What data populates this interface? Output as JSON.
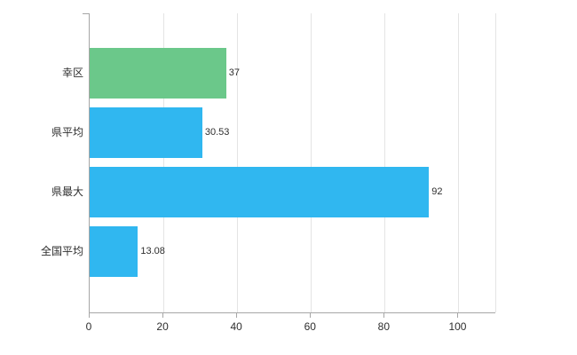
{
  "chart_data": {
    "type": "bar",
    "orientation": "horizontal",
    "title": "",
    "xlabel": "",
    "ylabel": "",
    "categories": [
      "幸区",
      "県平均",
      "県最大",
      "全国平均"
    ],
    "values": [
      37,
      30.53,
      92,
      13.08
    ],
    "value_labels": [
      "37",
      "30.53",
      "92",
      "13.08"
    ],
    "bar_colors": [
      "#6bc88a",
      "#30b7f0",
      "#30b7f0",
      "#30b7f0"
    ],
    "xlim": [
      0,
      110
    ],
    "xticks": [
      0,
      20,
      40,
      60,
      80,
      100
    ],
    "xtick_labels": [
      "0",
      "20",
      "40",
      "60",
      "80",
      "100"
    ],
    "grid": "vertical",
    "legend": "none",
    "colors": {
      "axis": "#a6a6a6",
      "grid": "#e4e4e4",
      "text": "#2e2e2e",
      "background": "#ffffff"
    }
  }
}
